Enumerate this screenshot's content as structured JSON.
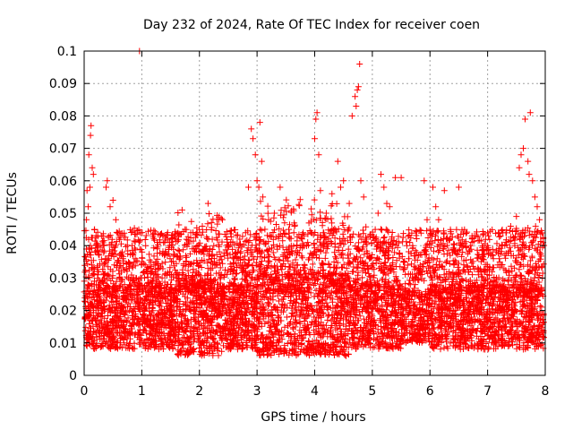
{
  "chart_data": {
    "type": "scatter",
    "title": "Day 232 of 2024, Rate Of TEC Index for receiver coen",
    "xlabel": "GPS time / hours",
    "ylabel": "ROTI / TECUs",
    "xlim": [
      0,
      8
    ],
    "ylim": [
      0,
      0.1
    ],
    "x_ticks": [
      0,
      1,
      2,
      3,
      4,
      5,
      6,
      7,
      8
    ],
    "x_tick_labels": [
      "0",
      "1",
      "2",
      "3",
      "4",
      "5",
      "6",
      "7",
      "8"
    ],
    "y_ticks": [
      0,
      0.01,
      0.02,
      0.03,
      0.04,
      0.05,
      0.06,
      0.07,
      0.08,
      0.09,
      0.1
    ],
    "y_tick_labels": [
      "0",
      "0.01",
      "0.02",
      "0.03",
      "0.04",
      "0.05",
      "0.06",
      "0.07",
      "0.08",
      "0.09",
      "0.1"
    ],
    "grid": true,
    "marker": "plus",
    "color": "#ff0000",
    "series": [
      {
        "name": "ROTI",
        "points": [
          [
            0.02,
            0.018
          ],
          [
            0.04,
            0.048
          ],
          [
            0.05,
            0.057
          ],
          [
            0.07,
            0.052
          ],
          [
            0.08,
            0.068
          ],
          [
            0.1,
            0.058
          ],
          [
            0.11,
            0.074
          ],
          [
            0.12,
            0.077
          ],
          [
            0.14,
            0.064
          ],
          [
            0.16,
            0.062
          ],
          [
            0.18,
            0.045
          ],
          [
            0.2,
            0.038
          ],
          [
            0.25,
            0.032
          ],
          [
            0.3,
            0.043
          ],
          [
            0.38,
            0.058
          ],
          [
            0.4,
            0.06
          ],
          [
            0.45,
            0.052
          ],
          [
            0.5,
            0.054
          ],
          [
            0.55,
            0.048
          ],
          [
            0.62,
            0.03
          ],
          [
            0.7,
            0.028
          ],
          [
            0.8,
            0.025
          ],
          [
            0.9,
            0.03
          ],
          [
            0.96,
            0.1
          ],
          [
            1.0,
            0.035
          ],
          [
            1.1,
            0.032
          ],
          [
            1.2,
            0.03
          ],
          [
            1.3,
            0.033
          ],
          [
            1.4,
            0.031
          ],
          [
            1.5,
            0.028
          ],
          [
            1.6,
            0.03
          ],
          [
            1.7,
            0.051
          ],
          [
            1.75,
            0.045
          ],
          [
            1.85,
            0.044
          ],
          [
            1.95,
            0.038
          ],
          [
            2.05,
            0.046
          ],
          [
            2.15,
            0.053
          ],
          [
            2.25,
            0.04
          ],
          [
            2.4,
            0.048
          ],
          [
            2.5,
            0.04
          ],
          [
            2.6,
            0.036
          ],
          [
            2.7,
            0.042
          ],
          [
            2.8,
            0.044
          ],
          [
            2.85,
            0.058
          ],
          [
            2.9,
            0.076
          ],
          [
            2.93,
            0.073
          ],
          [
            2.97,
            0.068
          ],
          [
            3.0,
            0.06
          ],
          [
            3.03,
            0.058
          ],
          [
            3.05,
            0.078
          ],
          [
            3.08,
            0.066
          ],
          [
            3.1,
            0.055
          ],
          [
            3.2,
            0.048
          ],
          [
            3.3,
            0.05
          ],
          [
            3.4,
            0.058
          ],
          [
            3.55,
            0.045
          ],
          [
            3.65,
            0.046
          ],
          [
            3.8,
            0.044
          ],
          [
            3.9,
            0.047
          ],
          [
            4.0,
            0.073
          ],
          [
            4.02,
            0.079
          ],
          [
            4.04,
            0.081
          ],
          [
            4.07,
            0.068
          ],
          [
            4.1,
            0.057
          ],
          [
            4.2,
            0.05
          ],
          [
            4.3,
            0.056
          ],
          [
            4.4,
            0.066
          ],
          [
            4.45,
            0.058
          ],
          [
            4.5,
            0.06
          ],
          [
            4.6,
            0.053
          ],
          [
            4.65,
            0.08
          ],
          [
            4.7,
            0.086
          ],
          [
            4.72,
            0.083
          ],
          [
            4.74,
            0.088
          ],
          [
            4.76,
            0.089
          ],
          [
            4.78,
            0.096
          ],
          [
            4.8,
            0.06
          ],
          [
            4.85,
            0.055
          ],
          [
            4.9,
            0.042
          ],
          [
            4.95,
            0.036
          ],
          [
            5.05,
            0.045
          ],
          [
            5.1,
            0.05
          ],
          [
            5.15,
            0.062
          ],
          [
            5.2,
            0.058
          ],
          [
            5.25,
            0.053
          ],
          [
            5.3,
            0.052
          ],
          [
            5.4,
            0.061
          ],
          [
            5.5,
            0.061
          ],
          [
            5.6,
            0.04
          ],
          [
            5.7,
            0.03
          ],
          [
            5.8,
            0.033
          ],
          [
            5.9,
            0.06
          ],
          [
            5.95,
            0.048
          ],
          [
            6.0,
            0.045
          ],
          [
            6.05,
            0.058
          ],
          [
            6.1,
            0.052
          ],
          [
            6.15,
            0.048
          ],
          [
            6.25,
            0.057
          ],
          [
            6.35,
            0.037
          ],
          [
            6.5,
            0.058
          ],
          [
            6.55,
            0.04
          ],
          [
            6.7,
            0.04
          ],
          [
            6.8,
            0.043
          ],
          [
            6.9,
            0.036
          ],
          [
            7.0,
            0.04
          ],
          [
            7.1,
            0.036
          ],
          [
            7.2,
            0.036
          ],
          [
            7.3,
            0.037
          ],
          [
            7.4,
            0.046
          ],
          [
            7.5,
            0.049
          ],
          [
            7.55,
            0.064
          ],
          [
            7.58,
            0.068
          ],
          [
            7.62,
            0.07
          ],
          [
            7.65,
            0.079
          ],
          [
            7.7,
            0.066
          ],
          [
            7.72,
            0.062
          ],
          [
            7.74,
            0.081
          ],
          [
            7.78,
            0.06
          ],
          [
            7.82,
            0.055
          ],
          [
            7.86,
            0.052
          ],
          [
            7.9,
            0.048
          ],
          [
            7.95,
            0.03
          ]
        ]
      }
    ],
    "generated_band": {
      "description_visible": false,
      "x_start": 0.0,
      "x_end": 7.98,
      "baseline_min": 0.006,
      "baseline_center": 0.018,
      "baseline_spread": 0.02
    }
  }
}
